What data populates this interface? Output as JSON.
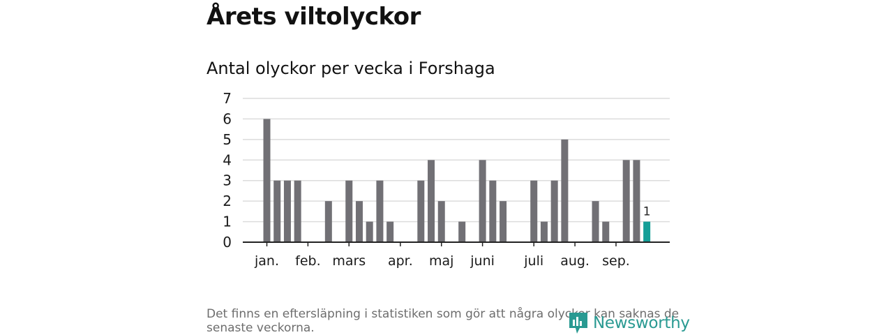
{
  "title": "Årets viltolyckor",
  "subtitle": "Antal olyckor per vecka i Forshaga",
  "footnote": "Det finns en eftersläpning i statistiken som gör att några olyckor kan saknas de senaste veckorna.",
  "logo": {
    "text": "Newsworthy",
    "icon": "newsworthy-chart-icon"
  },
  "colors": {
    "bar": "#717075",
    "bar_highlight": "#149e97",
    "grid": "#dcdcdc",
    "axis": "#222222",
    "logo": "#2a9a92",
    "footnote": "#6d6d6d"
  },
  "chart_data": {
    "type": "bar",
    "x_label": "",
    "y_label": "",
    "ylim": [
      0,
      7
    ],
    "y_ticks": [
      "0",
      "1",
      "2",
      "3",
      "4",
      "5",
      "6",
      "7"
    ],
    "grid": true,
    "x_ticks": [
      {
        "label": "jan.",
        "week": 1
      },
      {
        "label": "feb.",
        "week": 5
      },
      {
        "label": "mars",
        "week": 9
      },
      {
        "label": "apr.",
        "week": 14
      },
      {
        "label": "maj",
        "week": 18
      },
      {
        "label": "juni",
        "week": 22
      },
      {
        "label": "juli",
        "week": 27
      },
      {
        "label": "aug.",
        "week": 31
      },
      {
        "label": "sep.",
        "week": 35
      }
    ],
    "weeks": [
      1,
      2,
      3,
      4,
      5,
      6,
      7,
      8,
      9,
      10,
      11,
      12,
      13,
      14,
      15,
      16,
      17,
      18,
      19,
      20,
      21,
      22,
      23,
      24,
      25,
      26,
      27,
      28,
      29,
      30,
      31,
      32,
      33,
      34,
      35,
      36,
      37,
      38
    ],
    "values": [
      6,
      3,
      3,
      3,
      0,
      0,
      2,
      0,
      3,
      2,
      1,
      3,
      1,
      0,
      0,
      3,
      4,
      2,
      0,
      1,
      0,
      4,
      3,
      2,
      0,
      0,
      3,
      1,
      3,
      5,
      0,
      0,
      2,
      1,
      0,
      4,
      4,
      1
    ],
    "highlight_index": 37,
    "highlight_label": "1"
  }
}
